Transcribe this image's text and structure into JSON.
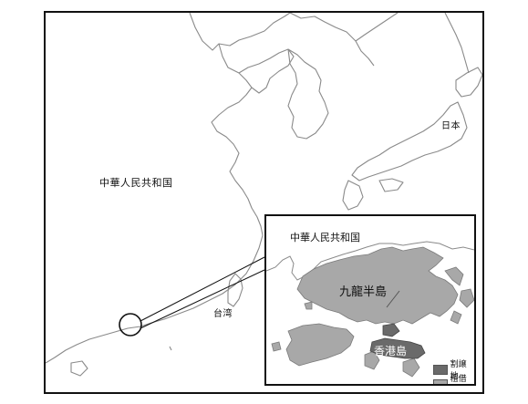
{
  "labels": {
    "china": "中華人民共和国",
    "japan": "日本",
    "taiwan": "台湾"
  },
  "inset": {
    "china": "中華人民共和国",
    "kowloon": "九龍半島",
    "hk_island": "香港島"
  },
  "legend": [
    {
      "label": "割譲地",
      "color": "#6a6a6a"
    },
    {
      "label": "租借地",
      "color": "#a8a8a8"
    }
  ],
  "colors": {
    "coast": "#8a8a8a",
    "ceded": "#6a6a6a",
    "leased": "#a8a8a8",
    "frame": "#111111"
  }
}
